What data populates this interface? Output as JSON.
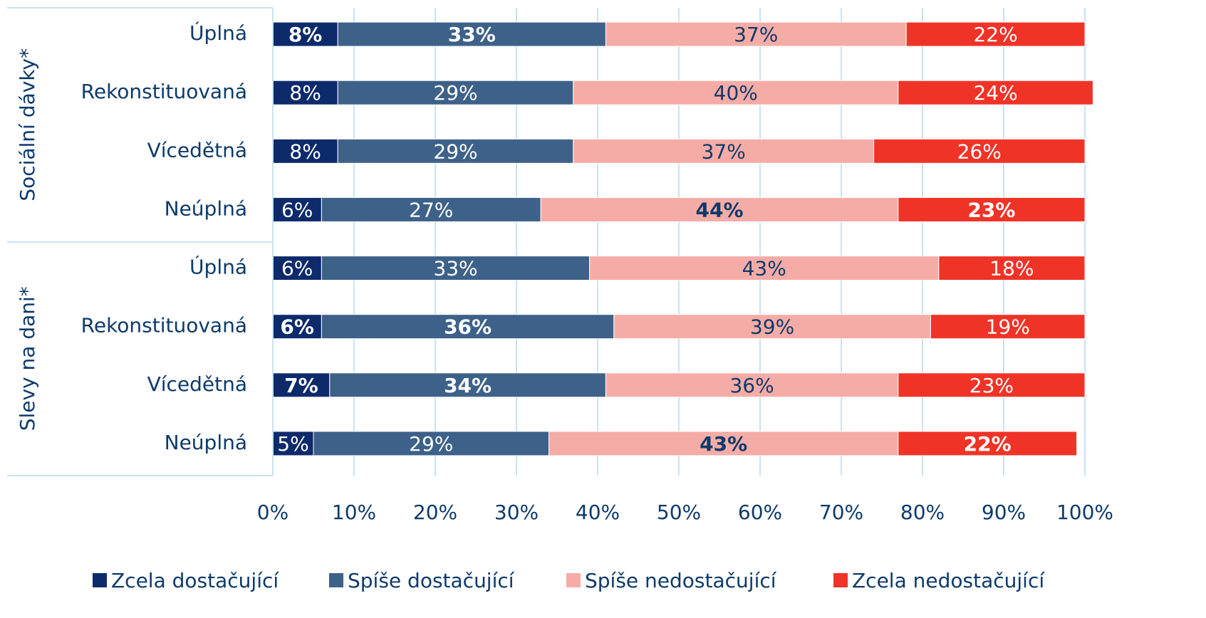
{
  "chart_data": {
    "type": "stacked_bar_horizontal",
    "groups": [
      {
        "name": "Sociální dávky*",
        "categories": [
          "Úplná",
          "Rekonstituovaná",
          "Vícedětná",
          "Neúplná"
        ]
      },
      {
        "name": "Slevy na dani*",
        "categories": [
          "Úplná",
          "Rekonstituovaná",
          "Vícedětná",
          "Neúplná"
        ]
      }
    ],
    "series": [
      {
        "name": "Zcela dostačující",
        "color": "#0d2a6b",
        "label_color": "#ffffff",
        "values": [
          8,
          8,
          8,
          6,
          6,
          6,
          7,
          5
        ],
        "value_labels": [
          "8%",
          "8%",
          "8%",
          "6%",
          "6%",
          "6%",
          "7%",
          "5%"
        ],
        "bold": [
          true,
          false,
          false,
          false,
          false,
          true,
          true,
          false
        ]
      },
      {
        "name": "Spíše dostačující",
        "color": "#3d6189",
        "label_color": "#ffffff",
        "values": [
          33,
          29,
          29,
          27,
          33,
          36,
          34,
          29
        ],
        "value_labels": [
          "33%",
          "29%",
          "29%",
          "27%",
          "33%",
          "36%",
          "34%",
          "29%"
        ],
        "bold": [
          true,
          false,
          false,
          false,
          false,
          true,
          true,
          false
        ]
      },
      {
        "name": "Spíše nedostačující",
        "color": "#f6aca6",
        "label_color": "#0d3a6b",
        "values": [
          37,
          40,
          37,
          44,
          43,
          39,
          36,
          43
        ],
        "value_labels": [
          "37%",
          "40%",
          "37%",
          "44%",
          "43%",
          "39%",
          "36%",
          "43%"
        ],
        "bold": [
          false,
          false,
          false,
          true,
          false,
          false,
          false,
          true
        ]
      },
      {
        "name": "Zcela nedostačující",
        "color": "#ef3327",
        "label_color": "#ffffff",
        "values": [
          22,
          24,
          26,
          23,
          18,
          19,
          23,
          22
        ],
        "value_labels": [
          "22%",
          "24%",
          "26%",
          "23%",
          "18%",
          "19%",
          "23%",
          "22%"
        ],
        "bold": [
          false,
          false,
          false,
          true,
          false,
          false,
          false,
          true
        ]
      }
    ],
    "xlim": [
      0,
      100
    ],
    "xticks": [
      {
        "value": 0,
        "label": "0%"
      },
      {
        "value": 10,
        "label": "10%"
      },
      {
        "value": 20,
        "label": "20%"
      },
      {
        "value": 30,
        "label": "30%"
      },
      {
        "value": 40,
        "label": "40%"
      },
      {
        "value": 50,
        "label": "50%"
      },
      {
        "value": 60,
        "label": "60%"
      },
      {
        "value": 70,
        "label": "70%"
      },
      {
        "value": 80,
        "label": "80%"
      },
      {
        "value": 90,
        "label": "90%"
      },
      {
        "value": 100,
        "label": "100%"
      }
    ],
    "grid": true,
    "legend": "bottom"
  }
}
